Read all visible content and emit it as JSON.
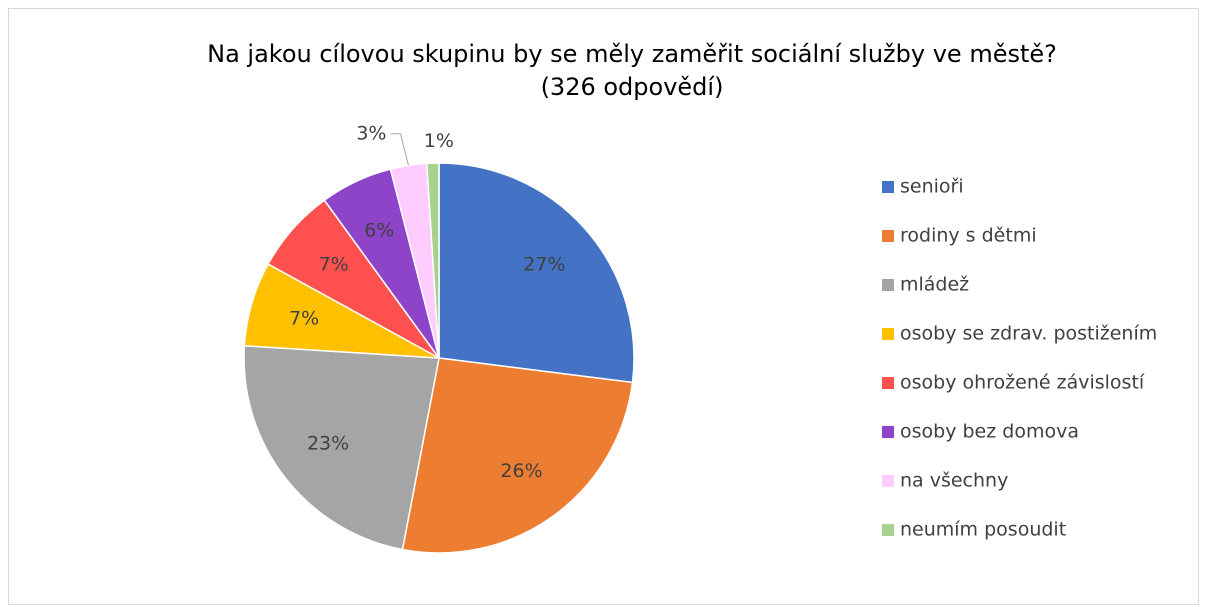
{
  "chart_data": {
    "type": "pie",
    "title": [
      "Na jakou cílovou skupinu by se měly zaměřit sociální služby ve městě?",
      "(326 odpovědí)"
    ],
    "categories": [
      "senioři",
      "rodiny s dětmi",
      "mládež",
      "osoby se zdrav. postižením",
      "osoby ohrožené závislostí",
      "osoby bez domova",
      "na všechny",
      "neumím posoudit"
    ],
    "values": [
      27,
      26,
      23,
      7,
      7,
      6,
      3,
      1
    ],
    "value_labels": [
      "27%",
      "26%",
      "23%",
      "7%",
      "7%",
      "6%",
      "3%",
      "1%"
    ],
    "colors": [
      "#4472c4",
      "#ed7d31",
      "#a5a5a5",
      "#ffc000",
      "#ff5050",
      "#8e44c8",
      "#ffccff",
      "#a9d18e"
    ],
    "legend": "right"
  }
}
